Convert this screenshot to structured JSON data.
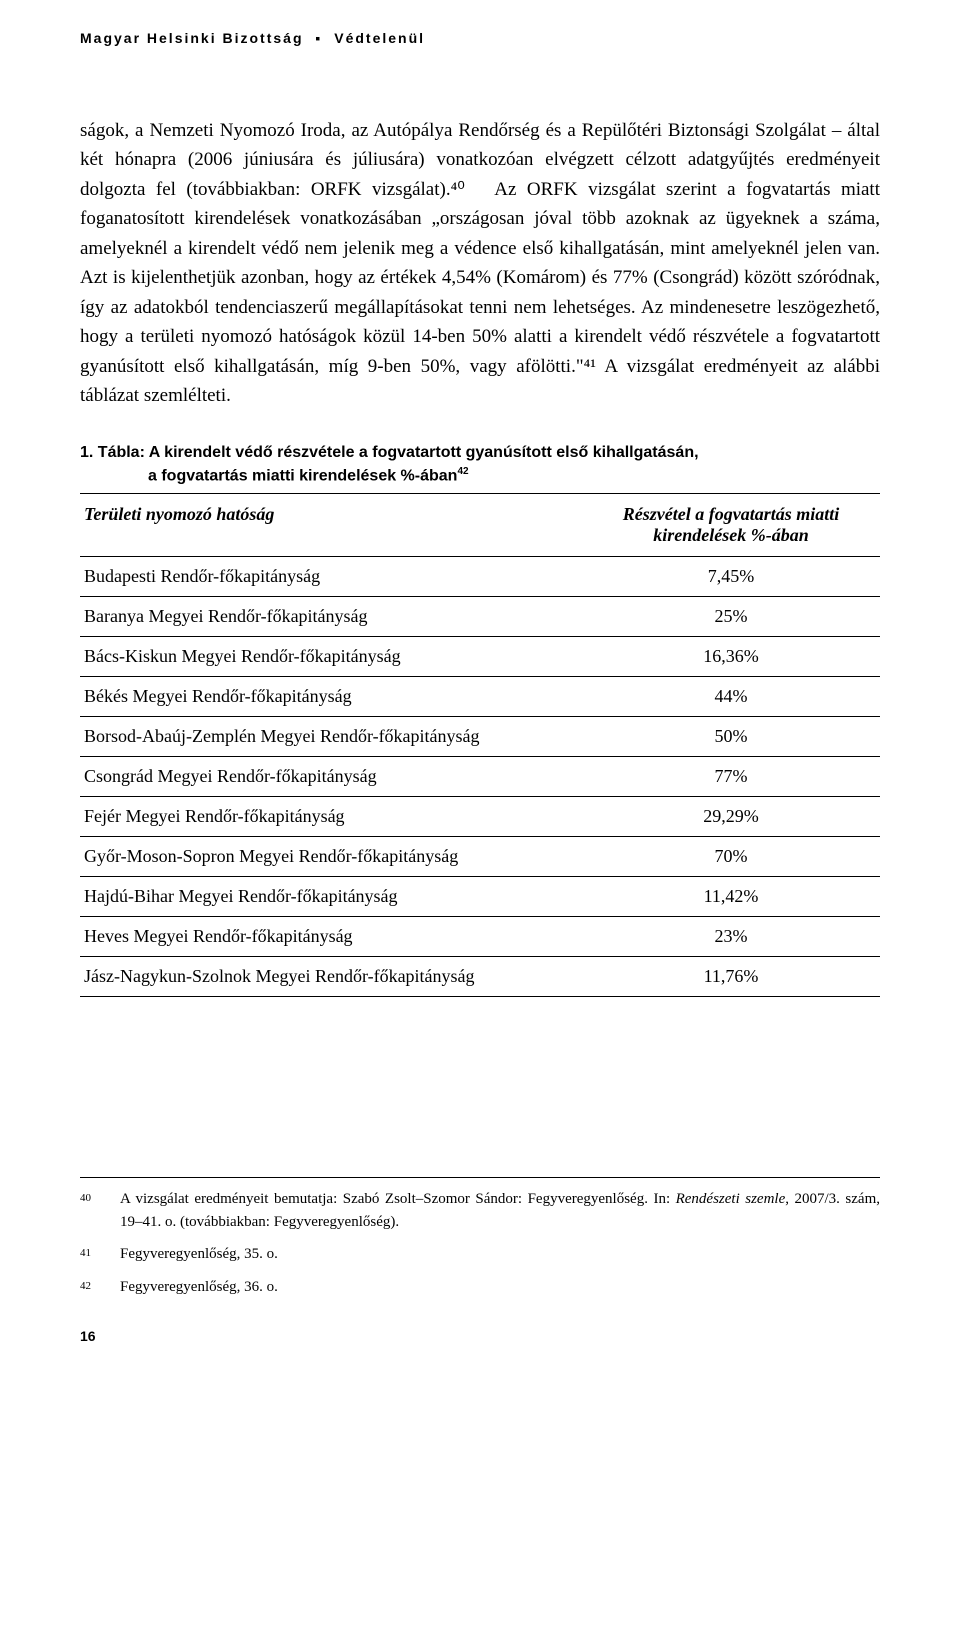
{
  "header": {
    "org": "Magyar Helsinki Bizottság",
    "title": "Védtelenül"
  },
  "body_text": "ságok, a Nemzeti Nyomozó Iroda, az Autópálya Rendőrség és a Repülőtéri Biztonsági Szolgálat – által két hónapra (2006 júniusára és júliusára) vonatkozóan elvégzett célzott adatgyűjtés eredményeit dolgozta fel (továbbiakban: ORFK vizsgálat).⁴⁰\n Az ORFK vizsgálat szerint a fogvatartás miatt foganatosított kirendelések vonatkozásában „országosan jóval több azoknak az ügyeknek a száma, amelyeknél a kirendelt védő nem jelenik meg a védence első kihallgatásán, mint amelyeknél jelen van. Azt is kijelenthetjük azonban, hogy az értékek 4,54% (Komárom) és 77% (Csongrád) között szóródnak, így az adatokból tendenciaszerű megállapításokat tenni nem lehetséges. Az mindenesetre leszögezhető, hogy a területi nyomozó hatóságok közül 14-ben 50% alatti a kirendelt védő részvétele a fogvatartott gyanúsított első kihallgatásán, míg 9-ben 50%, vagy afölötti.\"⁴¹ A vizsgálat eredményeit az alábbi táblázat szemlélteti.",
  "table": {
    "title_line1": "1. Tábla: A kirendelt védő részvétele a fogvatartott gyanúsított első kihallgatásán,",
    "title_line2": "a fogvatartás miatti kirendelések %-ában",
    "title_sup": "42",
    "header_left": "Területi nyomozó hatóság",
    "header_right": "Részvétel a fogvatartás miatti kirendelések %-ában",
    "rows": [
      {
        "name": "Budapesti Rendőr-főkapitányság",
        "value": "7,45%"
      },
      {
        "name": "Baranya Megyei Rendőr-főkapitányság",
        "value": "25%"
      },
      {
        "name": "Bács-Kiskun Megyei Rendőr-főkapitányság",
        "value": "16,36%"
      },
      {
        "name": "Békés Megyei Rendőr-főkapitányság",
        "value": "44%"
      },
      {
        "name": "Borsod-Abaúj-Zemplén Megyei Rendőr-főkapitányság",
        "value": "50%"
      },
      {
        "name": "Csongrád Megyei Rendőr-főkapitányság",
        "value": "77%"
      },
      {
        "name": "Fejér Megyei Rendőr-főkapitányság",
        "value": "29,29%"
      },
      {
        "name": "Győr-Moson-Sopron Megyei Rendőr-főkapitányság",
        "value": "70%"
      },
      {
        "name": "Hajdú-Bihar Megyei Rendőr-főkapitányság",
        "value": "11,42%"
      },
      {
        "name": "Heves Megyei Rendőr-főkapitányság",
        "value": "23%"
      },
      {
        "name": "Jász-Nagykun-Szolnok Megyei Rendőr-főkapitányság",
        "value": "11,76%"
      }
    ]
  },
  "footnotes": [
    {
      "num": "40",
      "text": "A vizsgálat eredményeit bemutatja: Szabó Zsolt–Szomor Sándor: Fegyveregyenlőség. In: <em>Rendészeti szemle</em>, 2007/3. szám, 19–41. o. (továbbiakban: Fegyveregyenlőség)."
    },
    {
      "num": "41",
      "text": "Fegyveregyenlőség, 35. o."
    },
    {
      "num": "42",
      "text": "Fegyveregyenlőség, 36. o."
    }
  ],
  "page_number": "16"
}
